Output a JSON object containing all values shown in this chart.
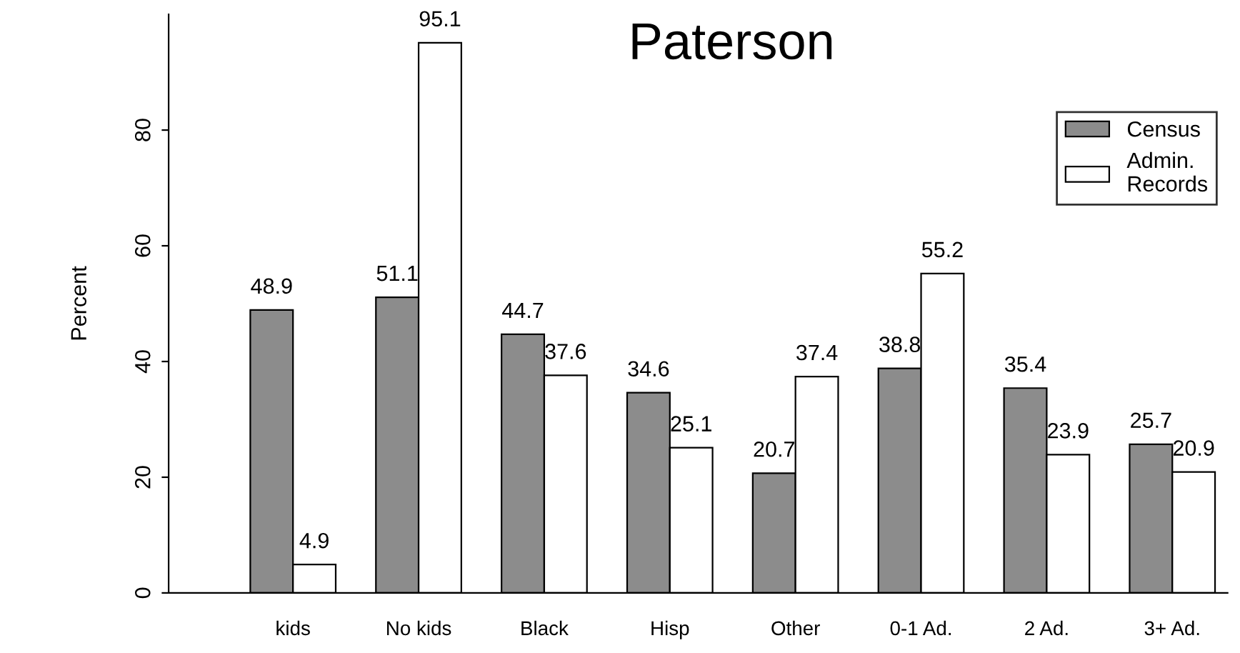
{
  "chart_data": {
    "type": "bar",
    "title": "Paterson",
    "ylabel": "Percent",
    "categories": [
      "kids",
      "No kids",
      "Black",
      "Hisp",
      "Other",
      "0-1 Ad.",
      "2 Ad.",
      "3+ Ad."
    ],
    "series": [
      {
        "name": "Census",
        "color": "#8c8c8c",
        "values": [
          48.9,
          51.1,
          44.7,
          34.6,
          20.7,
          38.8,
          35.4,
          25.7
        ]
      },
      {
        "name": "Admin.\nRecords",
        "color": "#ffffff",
        "values": [
          4.9,
          95.1,
          37.6,
          25.1,
          37.4,
          55.2,
          23.9,
          20.9
        ]
      }
    ],
    "ylim": [
      0,
      100
    ],
    "yticks": [
      0,
      20,
      40,
      60,
      80
    ],
    "data_labels": true,
    "legend": "top right",
    "grid": false
  }
}
